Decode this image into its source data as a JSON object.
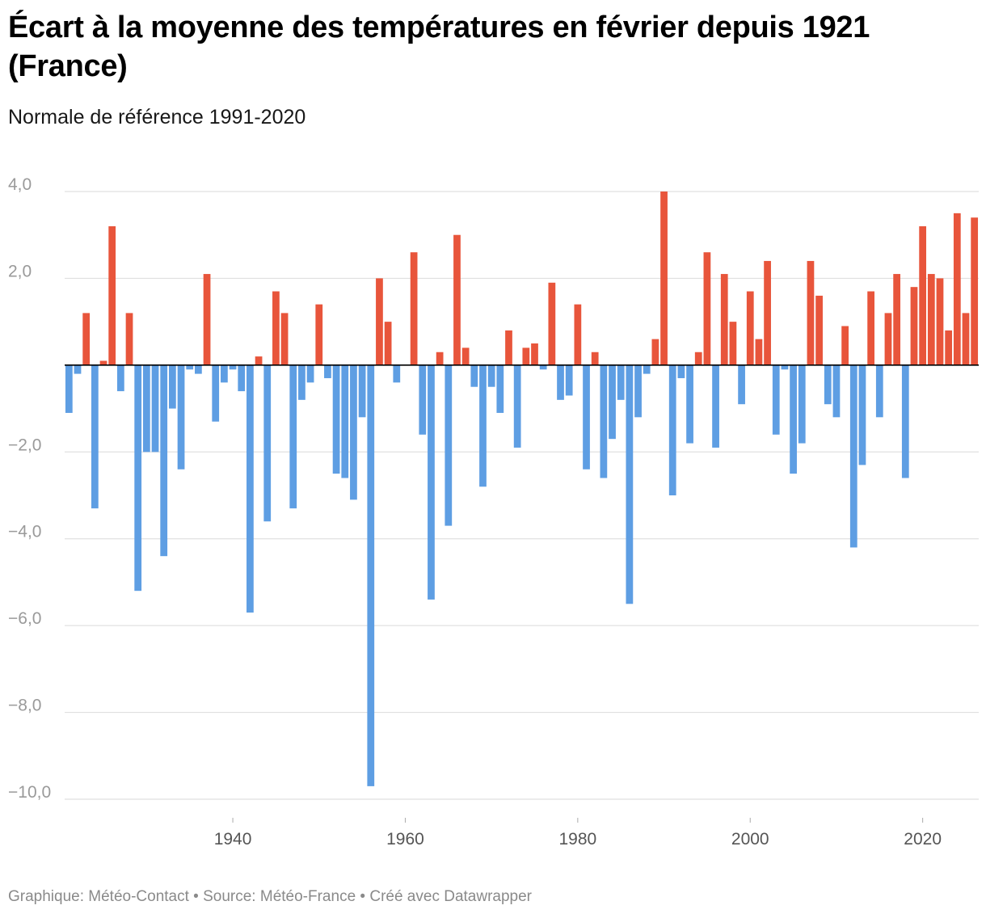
{
  "title": "Écart à la moyenne des températures en février depuis 1921 (France)",
  "subtitle": "Normale de référence 1991-2020",
  "footer": "Graphique: Météo-Contact • Source: Météo-France • Créé avec Datawrapper",
  "colors": {
    "positive": "#e8553b",
    "negative": "#5e9ee3",
    "grid": "#e0e0e0",
    "zero_line": "#000000",
    "tick_text": "#9a9a9a",
    "xtick_text": "#555555"
  },
  "chart_data": {
    "type": "bar",
    "title": "Écart à la moyenne des températures en février depuis 1921 (France)",
    "subtitle": "Normale de référence 1991-2020",
    "xlabel": "",
    "ylabel": "",
    "ylim": [
      -10,
      4
    ],
    "y_ticks": [
      4,
      2,
      -2,
      -4,
      -6,
      -8,
      -10
    ],
    "y_tick_labels": [
      "4,0",
      "2,0",
      "−2,0",
      "−4,0",
      "−6,0",
      "−8,0",
      "−10,0"
    ],
    "x_ticks": [
      1940,
      1960,
      1980,
      2000,
      2020
    ],
    "x_tick_labels": [
      "1940",
      "1960",
      "1980",
      "2000",
      "2020"
    ],
    "grid": true,
    "x": [
      1921,
      1922,
      1923,
      1924,
      1925,
      1926,
      1927,
      1928,
      1929,
      1930,
      1931,
      1932,
      1933,
      1934,
      1935,
      1936,
      1937,
      1938,
      1939,
      1940,
      1941,
      1942,
      1943,
      1944,
      1945,
      1946,
      1947,
      1948,
      1949,
      1950,
      1951,
      1952,
      1953,
      1954,
      1955,
      1956,
      1957,
      1958,
      1959,
      1960,
      1961,
      1962,
      1963,
      1964,
      1965,
      1966,
      1967,
      1968,
      1969,
      1970,
      1971,
      1972,
      1973,
      1974,
      1975,
      1976,
      1977,
      1978,
      1979,
      1980,
      1981,
      1982,
      1983,
      1984,
      1985,
      1986,
      1987,
      1988,
      1989,
      1990,
      1991,
      1992,
      1993,
      1994,
      1995,
      1996,
      1997,
      1998,
      1999,
      2000,
      2001,
      2002,
      2003,
      2004,
      2005,
      2006,
      2007,
      2008,
      2009,
      2010,
      2011,
      2012,
      2013,
      2014,
      2015,
      2016,
      2017,
      2018,
      2019,
      2020,
      2021,
      2022,
      2023,
      2024,
      2025,
      2026
    ],
    "values": [
      -1.1,
      -0.2,
      1.2,
      -3.3,
      0.1,
      3.2,
      -0.6,
      1.2,
      -5.2,
      -2.0,
      -2.0,
      -4.4,
      -1.0,
      -2.4,
      -0.1,
      -0.2,
      2.1,
      -1.3,
      -0.4,
      -0.1,
      -0.6,
      -5.7,
      0.2,
      -3.6,
      1.7,
      1.2,
      -3.3,
      -0.8,
      -0.4,
      1.4,
      -0.3,
      -2.5,
      -2.6,
      -3.1,
      -1.2,
      -9.7,
      2.0,
      1.0,
      -0.4,
      0.0,
      2.6,
      -1.6,
      -5.4,
      0.3,
      -3.7,
      3.0,
      0.4,
      -0.5,
      -2.8,
      -0.5,
      -1.1,
      0.8,
      -1.9,
      0.4,
      0.5,
      -0.1,
      1.9,
      -0.8,
      -0.7,
      1.4,
      -2.4,
      0.3,
      -2.6,
      -1.7,
      -0.8,
      -5.5,
      -1.2,
      -0.2,
      0.6,
      4.0,
      -3.0,
      -0.3,
      -1.8,
      0.3,
      2.6,
      -1.9,
      2.1,
      1.0,
      -0.9,
      1.7,
      0.6,
      2.4,
      -1.6,
      -0.1,
      -2.5,
      -1.8,
      2.4,
      1.6,
      -0.9,
      -1.2,
      0.9,
      -4.2,
      -2.3,
      1.7,
      -1.2,
      1.2,
      2.1,
      -2.6,
      1.8,
      3.2,
      2.1,
      2.0,
      0.8,
      3.5,
      1.2,
      3.4
    ]
  }
}
